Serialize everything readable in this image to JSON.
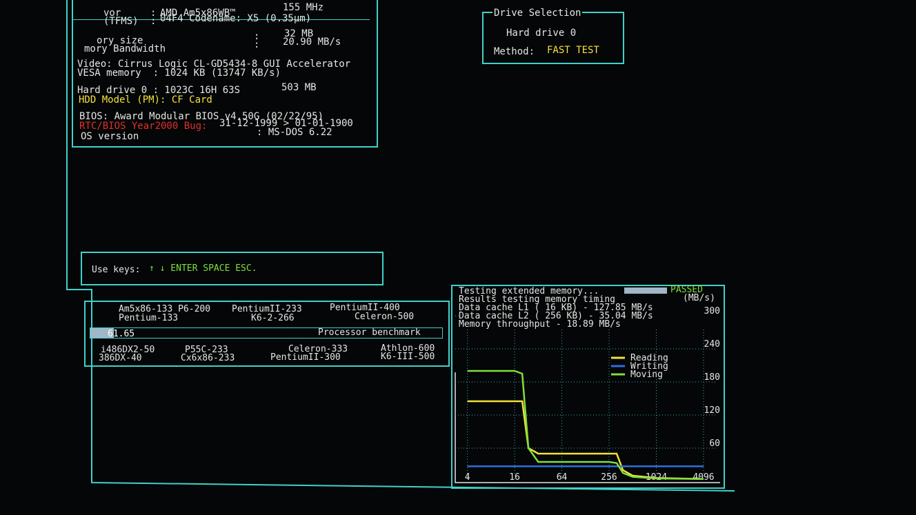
{
  "system_info": {
    "rows": [
      {
        "label": "vor",
        "sep": ":",
        "value": "AMD Am5x86WB™",
        "extra": "155 MHz"
      },
      {
        "label": "(TFMS)",
        "sep": ":",
        "value": "04F4 Codename: X5 (0.35µm)"
      },
      {
        "label": "ory size",
        "sep": ":",
        "value": "32 MB"
      },
      {
        "label": "mory Bandwidth",
        "sep": ":",
        "value": "20.90 MB/s"
      }
    ],
    "video": "Video: Cirrus Logic CL-GD5434-8 GUI Accelerator",
    "vesa": "VESA memory  : 1024 KB (13747 KB/s)",
    "hdd": "Hard drive 0 : 1023C 16H 63S",
    "hdd_size": "503 MB",
    "hdd_model": "HDD Model (PM): CF Card",
    "bios": "BIOS: Award Modular BIOS v4.50G (02/22/95)",
    "y2k_label": "RTC/BIOS Year2000 Bug:",
    "y2k_value": "31-12-1999 > 01-01-1900",
    "os_label": "OS version",
    "os_value": ": MS-DOS 6.22"
  },
  "drive_selection": {
    "title": "Drive Selection",
    "drive": "Hard drive 0",
    "method_label": "Method:",
    "method_value": "FAST TEST"
  },
  "keys": {
    "label": "Use keys:",
    "value": "↑ ↓ ENTER SPACE ESC."
  },
  "processor_benchmark": {
    "top": [
      "Am5x86-133 P6-200",
      "Pentium-133",
      "PentiumII-233",
      "K6-2-266",
      "PentiumII-400",
      "Celeron-500"
    ],
    "score": "61.65",
    "title": "Processor benchmark",
    "bottom": [
      "i486DX2-50",
      "386DX-40",
      "P55C-233",
      "Cx6x86-233",
      "Celeron-333",
      "PentiumII-300",
      "Athlon-600",
      "K6-III-500"
    ]
  },
  "memory_test": {
    "status_label": "Testing extended memory...",
    "status": "PASSED",
    "results": "Results testing memory timing",
    "unit": "(MB/s)",
    "lines": [
      "Data cache L1 (  16 KB) -   127.85 MB/s",
      "Data cache L2 ( 256 KB) -    35.04 MB/s",
      "Memory throughput      -    18.89 MB/s"
    ]
  },
  "chart_data": {
    "type": "line",
    "x": [
      4,
      16,
      20,
      24,
      32,
      256,
      320,
      384,
      512,
      1024,
      4096
    ],
    "xscale": "log",
    "xlim": [
      2.8,
      6144
    ],
    "xticks": [
      4,
      16,
      64,
      256,
      1024,
      4096
    ],
    "ylim": [
      0,
      350
    ],
    "yticks": [
      60,
      120,
      180,
      240,
      300
    ],
    "grid": true,
    "series": [
      {
        "name": "Reading",
        "color": "#f2e23a",
        "values": [
          145,
          145,
          145,
          60,
          50,
          50,
          50,
          20,
          10,
          6,
          4
        ]
      },
      {
        "name": "Writing",
        "color": "#2e6fe0",
        "values": [
          27,
          27,
          27,
          27,
          27,
          27,
          27,
          27,
          27,
          27,
          27
        ]
      },
      {
        "name": "Moving",
        "color": "#7fe03a",
        "values": [
          200,
          200,
          195,
          60,
          35,
          35,
          33,
          15,
          8,
          5,
          4
        ]
      }
    ]
  }
}
